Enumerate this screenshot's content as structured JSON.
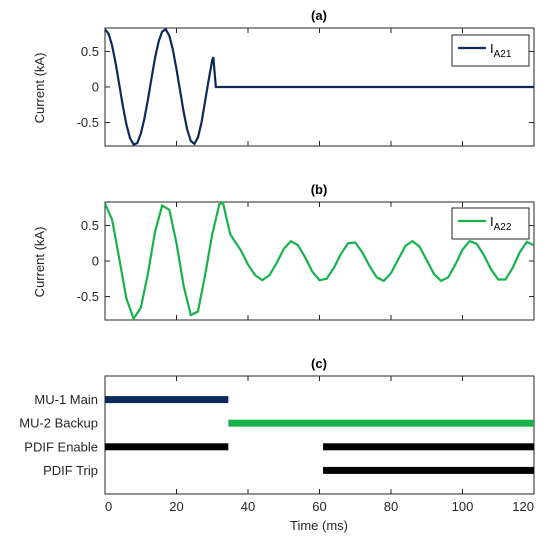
{
  "colors": {
    "navy": "#0b2a5a",
    "green": "#17b34a",
    "black": "#000000",
    "axis": "#262626"
  },
  "chart_data": [
    {
      "type": "line",
      "title": "(a)",
      "ylabel": "Current (kA)",
      "xlim": [
        0,
        120
      ],
      "ylim": [
        -0.83,
        0.83
      ],
      "yticks": [
        0.5,
        0,
        -0.5
      ],
      "ytick_labels": [
        "0.5",
        "0",
        "-0.5"
      ],
      "legend": {
        "position": "top-right",
        "label_main": "I",
        "label_sub": "A21"
      },
      "series": [
        {
          "name": "IA21",
          "color": "#0b2a5a",
          "x": [
            0,
            1,
            2,
            3,
            4,
            5,
            6,
            7,
            8,
            9,
            10,
            11,
            12,
            13,
            14,
            15,
            16,
            17,
            18,
            19,
            20,
            21,
            22,
            23,
            24,
            25,
            26,
            27,
            28,
            29,
            30,
            30.3,
            31,
            32,
            40,
            60,
            80,
            100,
            120
          ],
          "y": [
            0.81,
            0.75,
            0.58,
            0.33,
            0.03,
            -0.27,
            -0.53,
            -0.72,
            -0.81,
            -0.79,
            -0.66,
            -0.45,
            -0.18,
            0.12,
            0.41,
            0.64,
            0.78,
            0.81,
            0.72,
            0.52,
            0.25,
            -0.05,
            -0.35,
            -0.6,
            -0.76,
            -0.8,
            -0.71,
            -0.5,
            -0.2,
            0.1,
            0.38,
            0.42,
            0.0,
            0.0,
            0.0,
            0.0,
            0.0,
            0.0,
            0.0
          ]
        }
      ]
    },
    {
      "type": "line",
      "title": "(b)",
      "ylabel": "Current (kA)",
      "xlim": [
        0,
        120
      ],
      "ylim": [
        -0.83,
        0.83
      ],
      "yticks": [
        0.5,
        0,
        -0.5
      ],
      "ytick_labels": [
        "0.5",
        "0",
        "-0.5"
      ],
      "legend": {
        "position": "top-right",
        "label_main": "I",
        "label_sub": "A22"
      },
      "series": [
        {
          "name": "IA22",
          "color": "#17b34a",
          "x": [
            0,
            2,
            4,
            6,
            8,
            10,
            12,
            14,
            16,
            18,
            20,
            22,
            24,
            26,
            28,
            30,
            32,
            33,
            34,
            35,
            36,
            38,
            40,
            42,
            44,
            46,
            48,
            50,
            52,
            54,
            56,
            58,
            60,
            62,
            64,
            66,
            68,
            70,
            72,
            74,
            76,
            78,
            80,
            82,
            84,
            86,
            88,
            90,
            92,
            94,
            96,
            98,
            100,
            102,
            104,
            106,
            108,
            110,
            112,
            114,
            116,
            118,
            120
          ],
          "y": [
            0.81,
            0.58,
            0.03,
            -0.53,
            -0.81,
            -0.66,
            -0.18,
            0.41,
            0.78,
            0.72,
            0.25,
            -0.35,
            -0.76,
            -0.71,
            -0.2,
            0.38,
            0.8,
            0.82,
            0.6,
            0.38,
            0.3,
            0.15,
            -0.05,
            -0.2,
            -0.27,
            -0.2,
            -0.03,
            0.17,
            0.28,
            0.22,
            0.05,
            -0.15,
            -0.27,
            -0.25,
            -0.1,
            0.1,
            0.25,
            0.26,
            0.12,
            -0.07,
            -0.23,
            -0.28,
            -0.17,
            0.02,
            0.21,
            0.28,
            0.2,
            0.01,
            -0.18,
            -0.28,
            -0.23,
            -0.05,
            0.16,
            0.28,
            0.24,
            0.08,
            -0.12,
            -0.26,
            -0.26,
            -0.1,
            0.12,
            0.27,
            0.22
          ]
        }
      ]
    },
    {
      "type": "bar",
      "title": "(c)",
      "xlabel": "Time (ms)",
      "xlim": [
        0,
        120
      ],
      "xticks": [
        0,
        20,
        40,
        60,
        80,
        100,
        120
      ],
      "xtick_labels": [
        "0",
        "20",
        "40",
        "60",
        "80",
        "100",
        "120"
      ],
      "categories": [
        "MU-1 Main",
        "MU-2 Backup",
        "PDIF Enable",
        "PDIF Trip"
      ],
      "intervals": [
        {
          "label": "MU-1 Main",
          "start": 0,
          "end": 34.5,
          "color": "#0b2a5a"
        },
        {
          "label": "MU-2 Backup",
          "start": 34.5,
          "end": 120,
          "color": "#17b34a"
        },
        {
          "label": "PDIF Enable",
          "start": 0,
          "end": 34.5,
          "color": "#000000"
        },
        {
          "label": "PDIF Enable",
          "start": 61,
          "end": 120,
          "color": "#000000"
        },
        {
          "label": "PDIF Trip",
          "start": 61,
          "end": 120,
          "color": "#000000"
        }
      ]
    }
  ]
}
